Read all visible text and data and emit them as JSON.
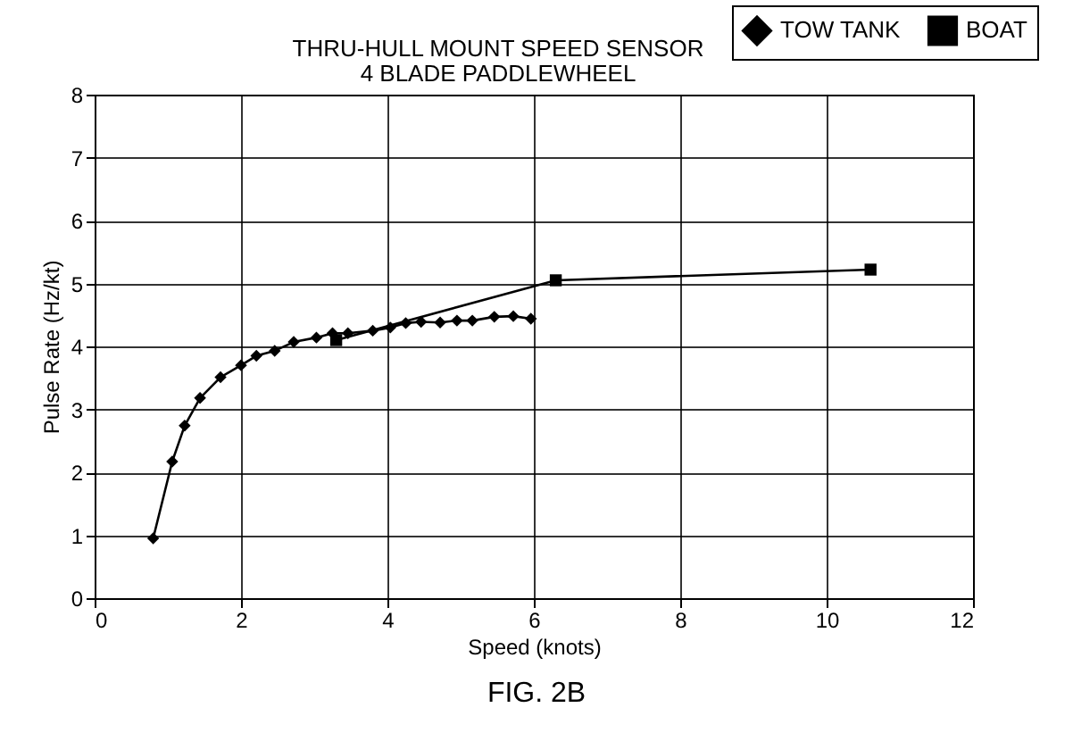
{
  "chart_data": {
    "type": "line",
    "title": "THRU-HULL MOUNT SPEED SENSOR",
    "subtitle": "4 BLADE PADDLEWHEEL",
    "xlabel": "Speed (knots)",
    "ylabel": "Pulse Rate (Hz/kt)",
    "annotations": [
      "FIG. 2B"
    ],
    "xlim": [
      0,
      12
    ],
    "xticks": [
      0,
      2,
      4,
      6,
      8,
      10,
      12
    ],
    "ylim": [
      0,
      8
    ],
    "yticks": [
      0,
      1,
      2,
      3,
      4,
      5,
      6,
      7,
      8
    ],
    "grid": true,
    "legend": "top right",
    "series": [
      {
        "name": "TOW TANK",
        "color": "#000000",
        "marker": "diamond",
        "x": [
          0.8,
          1.06,
          1.23,
          1.44,
          1.72,
          2.0,
          2.21,
          2.46,
          2.72,
          3.03,
          3.25,
          3.46,
          3.8,
          4.04,
          4.25,
          4.46,
          4.72,
          4.95,
          5.16,
          5.46,
          5.72,
          5.96
        ],
        "values": [
          0.95,
          2.17,
          2.74,
          3.18,
          3.51,
          3.7,
          3.85,
          3.93,
          4.07,
          4.14,
          4.21,
          4.21,
          4.25,
          4.3,
          4.37,
          4.39,
          4.38,
          4.41,
          4.41,
          4.47,
          4.48,
          4.44
        ]
      },
      {
        "name": "BOAT",
        "color": "#000000",
        "marker": "square",
        "x": [
          3.3,
          6.3,
          10.6
        ],
        "values": [
          4.1,
          5.05,
          5.22
        ]
      }
    ]
  }
}
